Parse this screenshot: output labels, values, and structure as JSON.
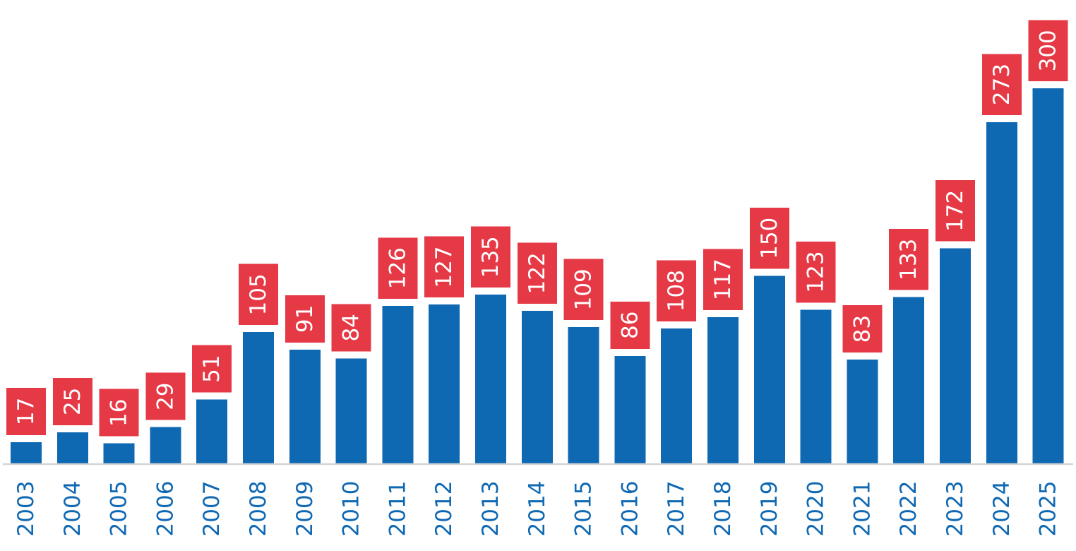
{
  "chart_data": {
    "type": "bar",
    "title": "",
    "xlabel": "",
    "ylabel": "",
    "categories": [
      "2003",
      "2004",
      "2005",
      "2006",
      "2007",
      "2008",
      "2009",
      "2010",
      "2011",
      "2012",
      "2013",
      "2014",
      "2015",
      "2016",
      "2017",
      "2018",
      "2019",
      "2020",
      "2021",
      "2022",
      "2023",
      "2024",
      "2025"
    ],
    "values": [
      17,
      25,
      16,
      29,
      51,
      105,
      91,
      84,
      126,
      127,
      135,
      122,
      109,
      86,
      108,
      117,
      150,
      123,
      83,
      133,
      172,
      273,
      300
    ],
    "data_labels": [
      "17",
      "25",
      "16",
      "29",
      "51",
      "105",
      "91",
      "84",
      "126",
      "127",
      "135",
      "122",
      "109",
      "86",
      "108",
      "117",
      "150",
      "123",
      "83",
      "133",
      "172",
      "273",
      "300"
    ],
    "ylim": [
      0,
      300
    ],
    "grid": false,
    "legend": "none",
    "colors": {
      "bar": "#0f68b2",
      "label_box": "#e63946",
      "label_text": "#ffffff",
      "tick_text": "#0f68b2",
      "axis": "#d4d4d4"
    }
  }
}
